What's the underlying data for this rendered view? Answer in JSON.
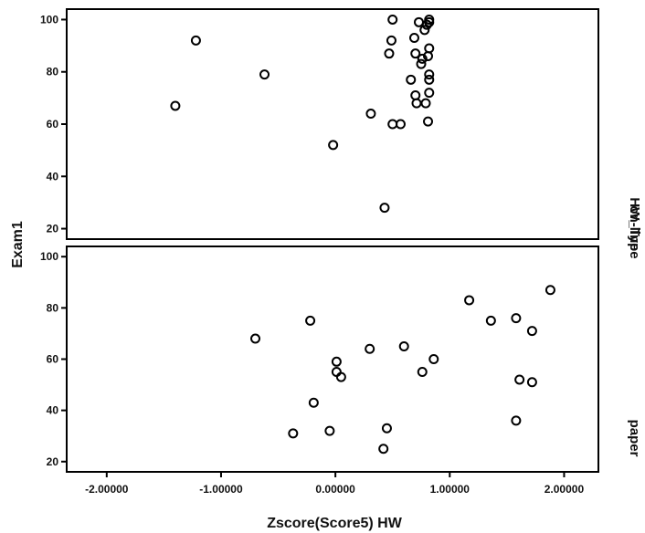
{
  "chart_data": {
    "type": "scatter",
    "xlabel": "Zscore(Score5)  HW",
    "ylabel": "Exam1",
    "facet_label": "HW_Type",
    "xlim": [
      -2.35,
      2.3
    ],
    "ylim": [
      16,
      104
    ],
    "x_ticks": [
      -2.0,
      -1.0,
      0.0,
      1.0,
      2.0
    ],
    "x_tick_labels": [
      "-2.00000",
      "-1.00000",
      "0.00000",
      "1.00000",
      "2.00000"
    ],
    "y_ticks": [
      20,
      40,
      60,
      80,
      100
    ],
    "y_tick_labels": [
      "20",
      "40",
      "60",
      "80",
      "100"
    ],
    "panels": [
      {
        "name": "on-line",
        "points": [
          [
            -1.4,
            67
          ],
          [
            -1.22,
            92
          ],
          [
            -0.62,
            79
          ],
          [
            -0.02,
            52
          ],
          [
            0.31,
            64
          ],
          [
            0.43,
            28
          ],
          [
            0.47,
            87
          ],
          [
            0.49,
            92
          ],
          [
            0.5,
            100
          ],
          [
            0.5,
            60
          ],
          [
            0.57,
            60
          ],
          [
            0.66,
            77
          ],
          [
            0.69,
            93
          ],
          [
            0.7,
            87
          ],
          [
            0.7,
            71
          ],
          [
            0.71,
            68
          ],
          [
            0.73,
            99
          ],
          [
            0.75,
            83
          ],
          [
            0.76,
            85
          ],
          [
            0.78,
            96
          ],
          [
            0.79,
            68
          ],
          [
            0.8,
            98
          ],
          [
            0.81,
            86
          ],
          [
            0.81,
            61
          ],
          [
            0.82,
            100
          ],
          [
            0.82,
            99
          ],
          [
            0.82,
            89
          ],
          [
            0.82,
            79
          ],
          [
            0.82,
            77
          ],
          [
            0.82,
            72
          ]
        ]
      },
      {
        "name": "paper",
        "points": [
          [
            -0.7,
            68
          ],
          [
            -0.37,
            31
          ],
          [
            -0.22,
            75
          ],
          [
            -0.19,
            43
          ],
          [
            -0.05,
            32
          ],
          [
            0.01,
            59
          ],
          [
            0.01,
            55
          ],
          [
            0.05,
            53
          ],
          [
            0.3,
            64
          ],
          [
            0.42,
            25
          ],
          [
            0.45,
            33
          ],
          [
            0.6,
            65
          ],
          [
            0.76,
            55
          ],
          [
            0.86,
            60
          ],
          [
            1.17,
            83
          ],
          [
            1.36,
            75
          ],
          [
            1.58,
            76
          ],
          [
            1.58,
            36
          ],
          [
            1.61,
            52
          ],
          [
            1.72,
            71
          ],
          [
            1.72,
            51
          ],
          [
            1.88,
            87
          ]
        ]
      }
    ]
  }
}
